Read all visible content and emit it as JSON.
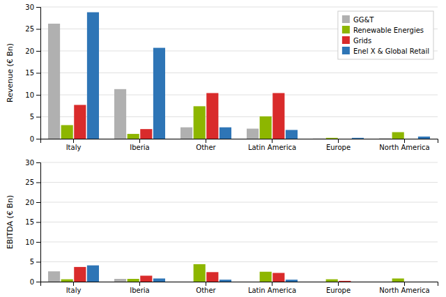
{
  "chart_data": [
    {
      "type": "bar",
      "ylabel": "Revenue (€ Bn)",
      "categories": [
        "Italy",
        "Iberia",
        "Other",
        "Latin America",
        "Europe",
        "North America"
      ],
      "series": [
        {
          "name": "GG&T",
          "color": "#b0b0b0",
          "values": [
            26.2,
            11.3,
            2.6,
            2.3,
            0.05,
            0.1
          ]
        },
        {
          "name": "Renewable Energies",
          "color": "#8db600",
          "values": [
            3.1,
            1.1,
            7.4,
            5.1,
            0.2,
            1.5
          ]
        },
        {
          "name": "Grids",
          "color": "#d92b2b",
          "values": [
            7.7,
            2.2,
            10.4,
            10.4,
            0.0,
            0.0
          ]
        },
        {
          "name": "Enel X & Global Retail",
          "color": "#2e75b6",
          "values": [
            28.8,
            20.7,
            2.6,
            2.0,
            0.2,
            0.5
          ]
        }
      ],
      "ylim": [
        0,
        30
      ],
      "yticks": [
        0,
        5,
        10,
        15,
        20,
        25,
        30
      ],
      "grid": true,
      "legend": "upper right"
    },
    {
      "type": "bar",
      "ylabel": "EBITDA (€ Bn)",
      "categories": [
        "Italy",
        "Iberia",
        "Other",
        "Latin America",
        "Europe",
        "North America"
      ],
      "series": [
        {
          "color": "#b0b0b0",
          "values": [
            2.6,
            0.7,
            0.0,
            0.0,
            0.0,
            0.0
          ]
        },
        {
          "color": "#8db600",
          "values": [
            0.6,
            0.7,
            4.4,
            2.5,
            0.6,
            0.8
          ]
        },
        {
          "color": "#d92b2b",
          "values": [
            3.7,
            1.5,
            2.4,
            2.2,
            0.2,
            0.0
          ]
        },
        {
          "color": "#2e75b6",
          "values": [
            4.1,
            0.8,
            0.5,
            0.5,
            0.0,
            0.0
          ]
        }
      ],
      "ylim": [
        0,
        30
      ],
      "yticks": [
        0,
        5,
        10,
        15,
        20,
        25,
        30
      ],
      "grid": true
    }
  ]
}
